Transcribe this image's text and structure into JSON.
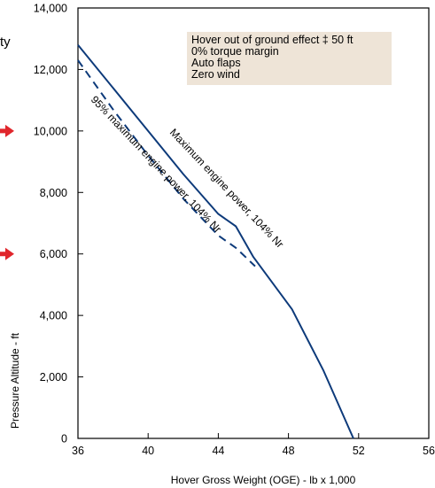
{
  "chart_data": {
    "type": "line",
    "xlabel": "Hover Gross Weight (OGE) - lb x 1,000",
    "ylabel": "Pressure Altitude - ft",
    "xlim": [
      36,
      56
    ],
    "ylim": [
      0,
      14000
    ],
    "x_ticks": [
      "36",
      "40",
      "44",
      "48",
      "52",
      "56"
    ],
    "y_ticks": [
      "0",
      "2,000",
      "4,000",
      "6,000",
      "8,000",
      "10,000",
      "12,000",
      "14,000"
    ],
    "x_tick_values": [
      36,
      40,
      44,
      48,
      52,
      56
    ],
    "y_tick_values": [
      0,
      2000,
      4000,
      6000,
      8000,
      10000,
      12000,
      14000
    ],
    "conditions": [
      "Hover out of ground effect ‡ 50 ft",
      "0% torque margin",
      "Auto flaps",
      "Zero wind"
    ],
    "series": [
      {
        "name": "Maximum engine power, 104% Nr",
        "style": "solid",
        "color": "#0d3a7a",
        "points": [
          [
            36,
            12800
          ],
          [
            38,
            11400
          ],
          [
            40,
            10000
          ],
          [
            42,
            8600
          ],
          [
            44,
            7300
          ],
          [
            45,
            6900
          ],
          [
            46,
            5900
          ],
          [
            48.2,
            4200
          ],
          [
            50,
            2200
          ],
          [
            51.7,
            0
          ]
        ]
      },
      {
        "name": "95% maximum engine power, 104% Nr",
        "style": "dashed",
        "color": "#0d3a7a",
        "points": [
          [
            36,
            12300
          ],
          [
            38,
            10700
          ],
          [
            40,
            9200
          ],
          [
            42,
            7800
          ],
          [
            44,
            6600
          ],
          [
            45,
            6200
          ],
          [
            46.1,
            5600
          ]
        ]
      }
    ],
    "arrow_markers_y": [
      10000,
      6000
    ],
    "arrow_color": "#e0262c",
    "legend_box_color": "#eee4d7",
    "edge_text_top": "ty"
  }
}
